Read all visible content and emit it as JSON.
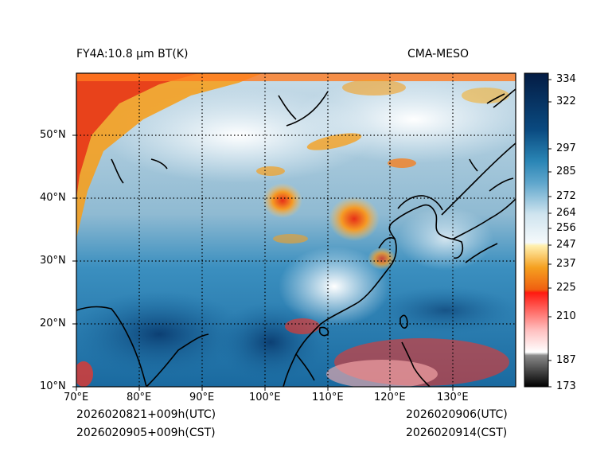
{
  "header": {
    "product": "FY4A:10.8 µm BT(K)",
    "model": "CMA-MESO"
  },
  "footer": {
    "init_utc": "2026020821+009h(UTC)",
    "init_cst": "2026020905+009h(CST)",
    "valid_utc": "2026020906(UTC)",
    "valid_cst": "2026020914(CST)"
  },
  "map": {
    "lon_range": [
      70,
      140
    ],
    "lat_range": [
      10,
      60
    ],
    "lon_ticks": [
      "70°E",
      "80°E",
      "90°E",
      "100°E",
      "110°E",
      "120°E",
      "130°E"
    ],
    "lat_ticks": [
      "10°N",
      "20°N",
      "30°N",
      "40°N",
      "50°N"
    ]
  },
  "colorbar": {
    "ticks": [
      "334",
      "322",
      "297",
      "285",
      "272",
      "264",
      "256",
      "247",
      "237",
      "225",
      "210",
      "187",
      "173"
    ],
    "colors": {
      "cold_black": "#000000",
      "gray": "#8a8a8a",
      "white": "#ffffff",
      "red": "#ff1a10",
      "orange": "#f5a020",
      "yellow": "#fff0b0",
      "pale_blue": "#dfeef5",
      "mid_blue": "#2a85b5",
      "deep_blue": "#0a4a80",
      "navy": "#041c44"
    }
  }
}
